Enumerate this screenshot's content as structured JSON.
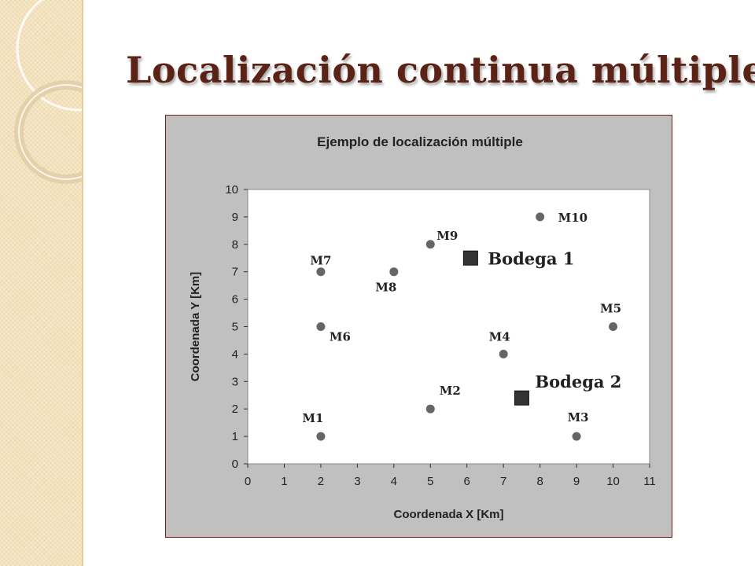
{
  "slide": {
    "title": "Localización continua múltiple"
  },
  "theme": {
    "title_color": "#5b2216",
    "panel_color": "#f3e2bd",
    "frame_border": "#7a1a1a",
    "marker_color": "#666666",
    "warehouse_color": "#333333"
  },
  "chart_data": {
    "type": "scatter",
    "title": "Ejemplo de localización múltiple",
    "xlabel": "Coordenada X [Km]",
    "ylabel": "Coordenada Y [Km]",
    "xlim": [
      0,
      11
    ],
    "ylim": [
      0,
      10
    ],
    "xticks": [
      "0",
      "1",
      "2",
      "3",
      "4",
      "5",
      "6",
      "7",
      "8",
      "9",
      "10",
      "11"
    ],
    "yticks": [
      "0",
      "1",
      "2",
      "3",
      "4",
      "5",
      "6",
      "7",
      "8",
      "9",
      "10"
    ],
    "grid": false,
    "series": [
      {
        "name": "",
        "marker": "circle",
        "points": [
          {
            "label": "M1",
            "x": 2,
            "y": 1
          },
          {
            "label": "M2",
            "x": 5,
            "y": 2
          },
          {
            "label": "M3",
            "x": 9,
            "y": 1
          },
          {
            "label": "M4",
            "x": 7,
            "y": 4
          },
          {
            "label": "M5",
            "x": 10,
            "y": 5
          },
          {
            "label": "M6",
            "x": 2,
            "y": 5
          },
          {
            "label": "M7",
            "x": 2,
            "y": 7
          },
          {
            "label": "M8",
            "x": 4,
            "y": 7
          },
          {
            "label": "M9",
            "x": 5,
            "y": 8
          },
          {
            "label": "M10",
            "x": 8,
            "y": 9
          }
        ]
      },
      {
        "name": "",
        "marker": "square",
        "points": [
          {
            "label": "Bodega 1",
            "x": 6.1,
            "y": 7.5
          },
          {
            "label": "Bodega 2",
            "x": 7.5,
            "y": 2.4
          }
        ]
      }
    ]
  }
}
